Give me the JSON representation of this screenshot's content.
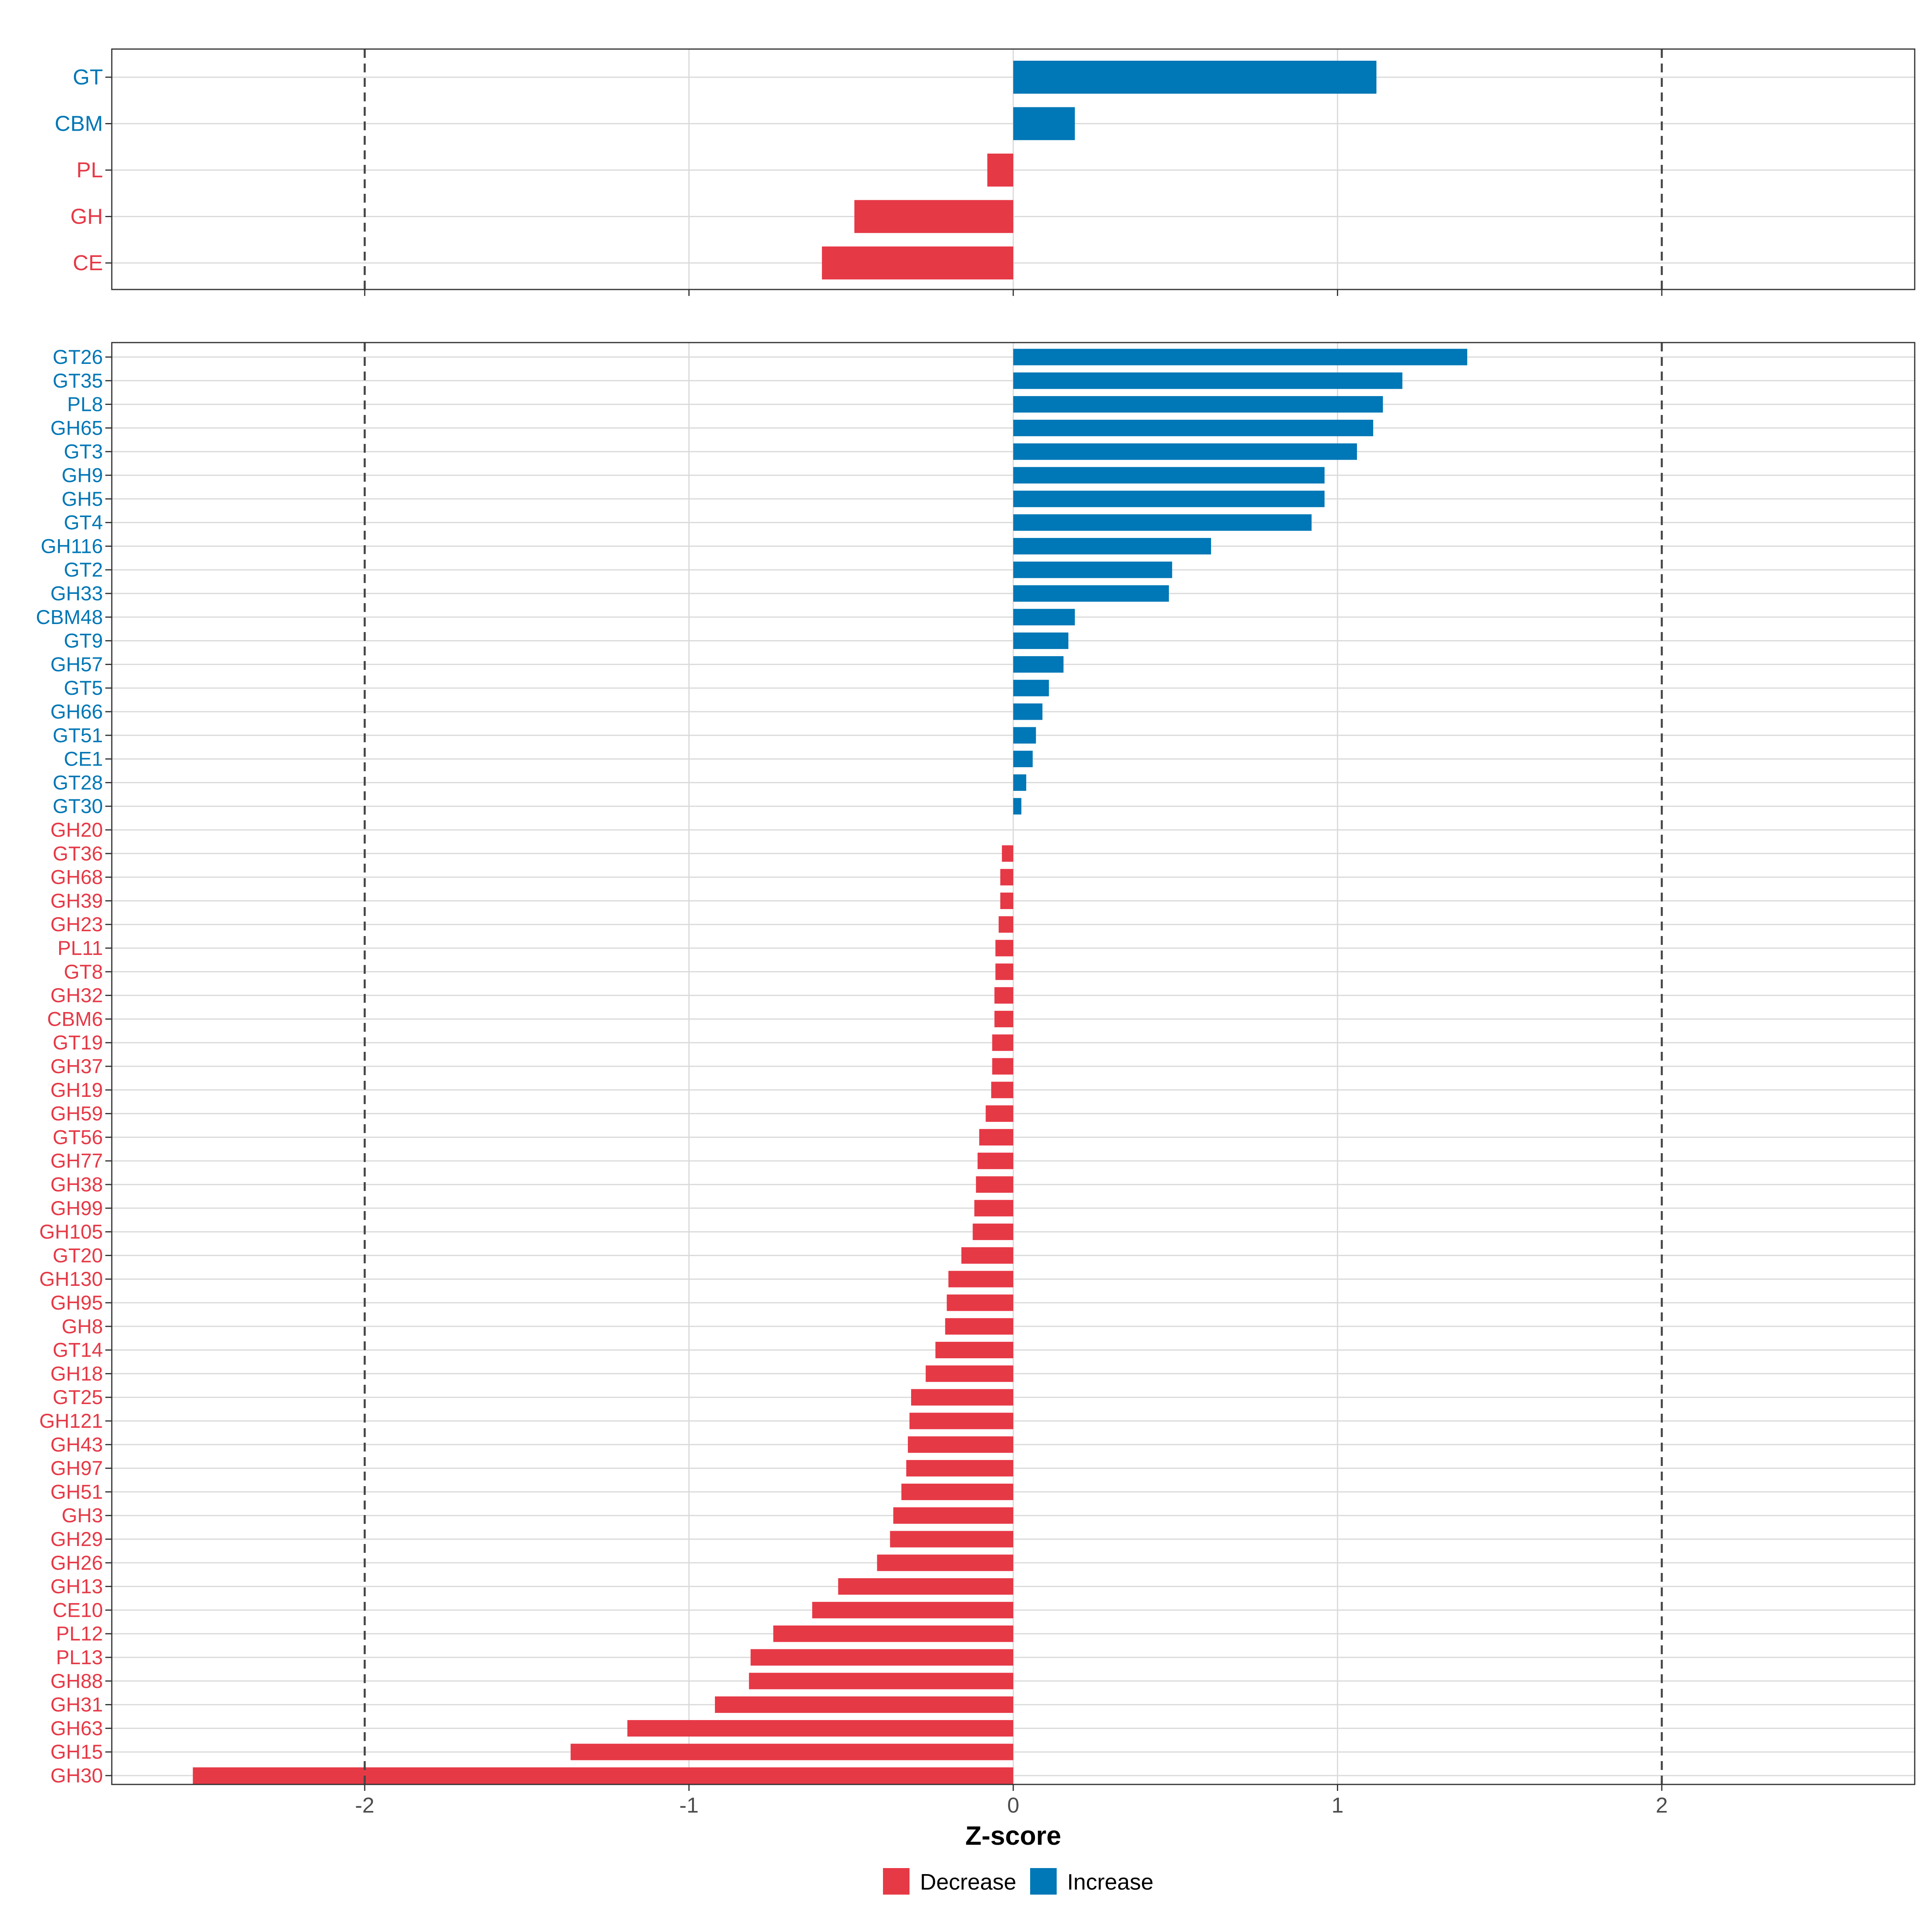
{
  "colors": {
    "decrease": "#E63946",
    "increase": "#0077B6",
    "grid": "#DADADA",
    "frame": "#333333",
    "threshold": "#444444",
    "axis_text": "#4D4D4D",
    "title_text": "#000000"
  },
  "chart_data": [
    {
      "type": "bar",
      "orientation": "horizontal",
      "panel": "top",
      "categories": [
        "GT",
        "CBM",
        "PL",
        "GH",
        "CE"
      ],
      "values": [
        1.12,
        0.19,
        -0.08,
        -0.49,
        -0.59
      ],
      "groups": [
        "Increase",
        "Increase",
        "Decrease",
        "Decrease",
        "Decrease"
      ],
      "xlim": [
        -2.78,
        2.78
      ],
      "reference_lines": [
        -2,
        2
      ],
      "grid": true
    },
    {
      "type": "bar",
      "orientation": "horizontal",
      "panel": "bottom",
      "categories": [
        "GT26",
        "GT35",
        "PL8",
        "GH65",
        "GT3",
        "GH9",
        "GH5",
        "GT4",
        "GH116",
        "GT2",
        "GH33",
        "CBM48",
        "GT9",
        "GH57",
        "GT5",
        "GH66",
        "GT51",
        "CE1",
        "GT28",
        "GT30",
        "GH20",
        "GT36",
        "GH68",
        "GH39",
        "GH23",
        "PL11",
        "GT8",
        "GH32",
        "CBM6",
        "GT19",
        "GH37",
        "GH19",
        "GH59",
        "GT56",
        "GH77",
        "GH38",
        "GH99",
        "GH105",
        "GT20",
        "GH130",
        "GH95",
        "GH8",
        "GT14",
        "GH18",
        "GT25",
        "GH121",
        "GH43",
        "GH97",
        "GH51",
        "GH3",
        "GH29",
        "GH26",
        "GH13",
        "CE10",
        "PL12",
        "PL13",
        "GH88",
        "GH31",
        "GH63",
        "GH15",
        "GH30"
      ],
      "values": [
        1.4,
        1.2,
        1.14,
        1.11,
        1.06,
        0.96,
        0.96,
        0.92,
        0.61,
        0.49,
        0.48,
        0.19,
        0.17,
        0.155,
        0.11,
        0.09,
        0.07,
        0.06,
        0.04,
        0.025,
        0.0,
        -0.035,
        -0.04,
        -0.04,
        -0.045,
        -0.055,
        -0.055,
        -0.058,
        -0.058,
        -0.065,
        -0.065,
        -0.068,
        -0.085,
        -0.105,
        -0.11,
        -0.115,
        -0.12,
        -0.125,
        -0.16,
        -0.2,
        -0.205,
        -0.21,
        -0.24,
        -0.27,
        -0.315,
        -0.32,
        -0.325,
        -0.33,
        -0.345,
        -0.37,
        -0.38,
        -0.42,
        -0.54,
        -0.62,
        -0.74,
        -0.81,
        -0.815,
        -0.92,
        -1.19,
        -1.365,
        -2.53
      ],
      "groups": [
        "Increase",
        "Increase",
        "Increase",
        "Increase",
        "Increase",
        "Increase",
        "Increase",
        "Increase",
        "Increase",
        "Increase",
        "Increase",
        "Increase",
        "Increase",
        "Increase",
        "Increase",
        "Increase",
        "Increase",
        "Increase",
        "Increase",
        "Increase",
        "Decrease",
        "Decrease",
        "Decrease",
        "Decrease",
        "Decrease",
        "Decrease",
        "Decrease",
        "Decrease",
        "Decrease",
        "Decrease",
        "Decrease",
        "Decrease",
        "Decrease",
        "Decrease",
        "Decrease",
        "Decrease",
        "Decrease",
        "Decrease",
        "Decrease",
        "Decrease",
        "Decrease",
        "Decrease",
        "Decrease",
        "Decrease",
        "Decrease",
        "Decrease",
        "Decrease",
        "Decrease",
        "Decrease",
        "Decrease",
        "Decrease",
        "Decrease",
        "Decrease",
        "Decrease",
        "Decrease",
        "Decrease",
        "Decrease",
        "Decrease",
        "Decrease",
        "Decrease",
        "Decrease"
      ],
      "xlim": [
        -2.78,
        2.78
      ],
      "xticks": [
        -2,
        -1,
        0,
        1,
        2
      ],
      "xtick_labels": [
        "-2",
        "-1",
        "0",
        "1",
        "2"
      ],
      "xlabel": "Z-score",
      "reference_lines": [
        -2,
        2
      ],
      "grid": true
    }
  ],
  "legend": {
    "placement": "bottom",
    "items": [
      {
        "label": "Decrease",
        "key": "decrease"
      },
      {
        "label": "Increase",
        "key": "increase"
      }
    ]
  }
}
